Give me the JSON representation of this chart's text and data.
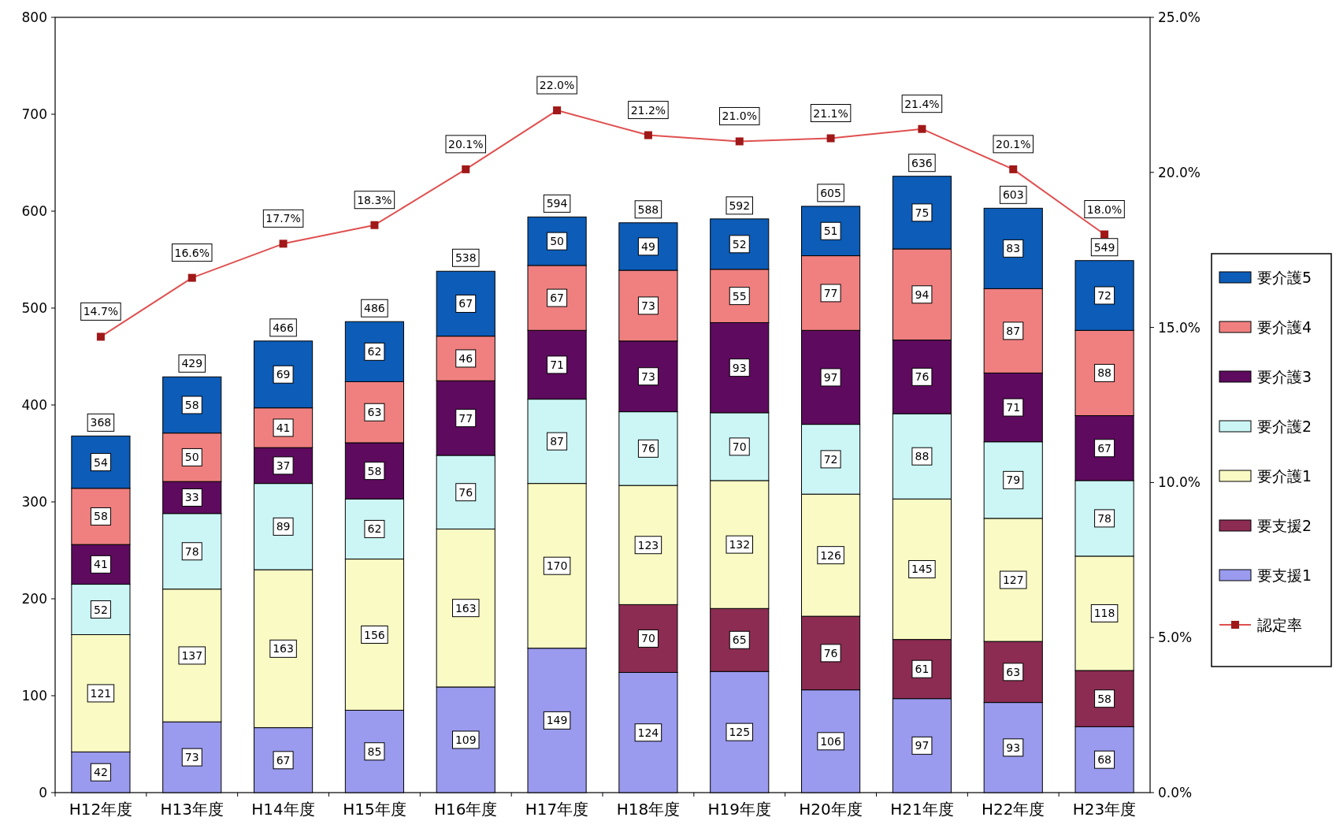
{
  "chart_data": {
    "type": "bar",
    "stacked": true,
    "data_labels": true,
    "legend": "right",
    "categories": [
      "H12年度",
      "H13年度",
      "H14年度",
      "H15年度",
      "H16年度",
      "H17年度",
      "H18年度",
      "H19年度",
      "H20年度",
      "H21年度",
      "H22年度",
      "H23年度"
    ],
    "series": [
      {
        "name": "要支援1",
        "color": "#9a9aee",
        "values": [
          42,
          73,
          67,
          85,
          109,
          149,
          124,
          125,
          106,
          97,
          93,
          68
        ]
      },
      {
        "name": "要支援2",
        "color": "#8c2c52",
        "values": [
          null,
          null,
          null,
          null,
          null,
          null,
          70,
          65,
          76,
          61,
          63,
          58
        ]
      },
      {
        "name": "要介護1",
        "color": "#fafac4",
        "values": [
          121,
          137,
          163,
          156,
          163,
          170,
          123,
          132,
          126,
          145,
          127,
          118
        ]
      },
      {
        "name": "要介護2",
        "color": "#ccf6f6",
        "values": [
          52,
          78,
          89,
          62,
          76,
          87,
          76,
          70,
          72,
          88,
          79,
          78
        ]
      },
      {
        "name": "要介護3",
        "color": "#5e0a5e",
        "values": [
          41,
          33,
          37,
          58,
          77,
          71,
          73,
          93,
          97,
          76,
          71,
          67
        ]
      },
      {
        "name": "要介護4",
        "color": "#f08080",
        "values": [
          58,
          50,
          41,
          63,
          46,
          67,
          73,
          55,
          77,
          94,
          87,
          88
        ]
      },
      {
        "name": "要介護5",
        "color": "#0c5cb8",
        "values": [
          54,
          58,
          69,
          62,
          67,
          50,
          49,
          52,
          51,
          75,
          83,
          72
        ]
      },
      {
        "name": "認定率",
        "type": "line",
        "axis": "y2",
        "marker": "square",
        "color": "#e05050",
        "values": [
          14.7,
          16.6,
          17.7,
          18.3,
          20.1,
          22.0,
          21.2,
          21.0,
          21.1,
          21.4,
          20.1,
          18.0
        ],
        "value_labels": [
          "14.7%",
          "16.6%",
          "17.7%",
          "18.3%",
          "20.1%",
          "22.0%",
          "21.2%",
          "21.0%",
          "21.1%",
          "21.4%",
          "20.1%",
          "18.0%"
        ]
      }
    ],
    "totals": [
      "368",
      "429",
      "466",
      "486",
      "538",
      "594",
      "588",
      "592",
      "605",
      "636",
      "603",
      "549"
    ],
    "ylim": [
      0,
      800
    ],
    "yticks": [
      0,
      100,
      200,
      300,
      400,
      500,
      600,
      700,
      800
    ],
    "y2lim": [
      0,
      25
    ],
    "y2ticks": [
      {
        "value": 0,
        "label": "0.0%"
      },
      {
        "value": 5,
        "label": "5.0%"
      },
      {
        "value": 10,
        "label": "10.0%"
      },
      {
        "value": 15,
        "label": "15.0%"
      },
      {
        "value": 20,
        "label": "20.0%"
      },
      {
        "value": 25,
        "label": "25.0%"
      }
    ]
  }
}
